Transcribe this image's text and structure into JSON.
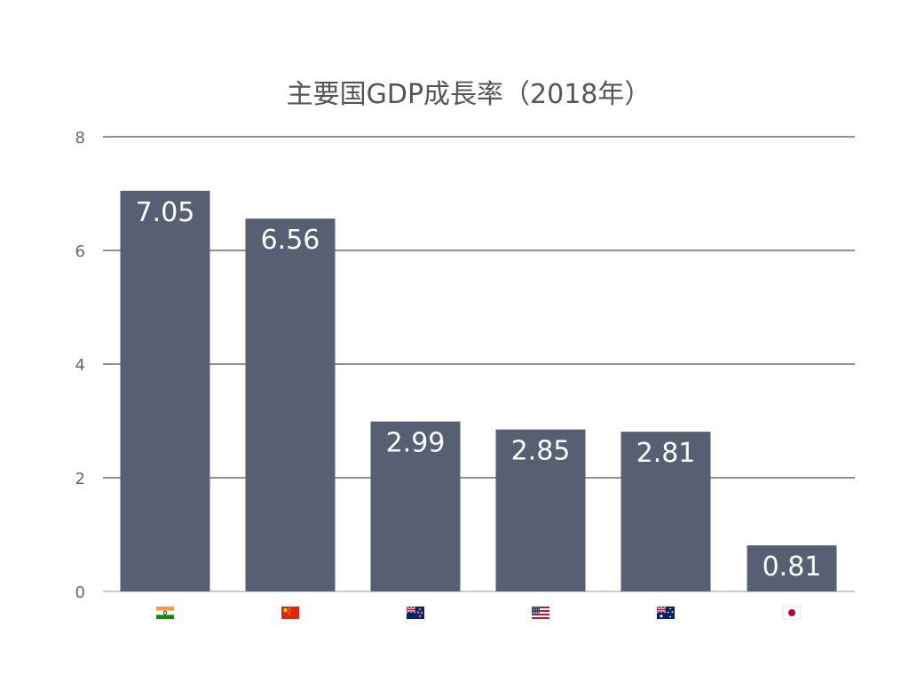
{
  "chart_data": {
    "type": "bar",
    "title": "主要国GDP成長率（2018年）",
    "xlabel": "",
    "ylabel": "",
    "ylim": [
      0,
      8
    ],
    "yticks": [
      0,
      2,
      4,
      6,
      8
    ],
    "grid": true,
    "legend": "none",
    "categories": [
      "India",
      "China",
      "New Zealand",
      "United States",
      "Australia",
      "Japan"
    ],
    "category_icons": [
      "india-flag-icon",
      "china-flag-icon",
      "new-zealand-flag-icon",
      "united-states-flag-icon",
      "australia-flag-icon",
      "japan-flag-icon"
    ],
    "values": [
      7.05,
      6.56,
      2.99,
      2.85,
      2.81,
      0.81
    ],
    "data_labels": [
      "7.05",
      "6.56",
      "2.99",
      "2.85",
      "2.81",
      "0.81"
    ],
    "bar_color": "#566072",
    "label_color": "#ffffff",
    "grid_color": "#222222"
  }
}
